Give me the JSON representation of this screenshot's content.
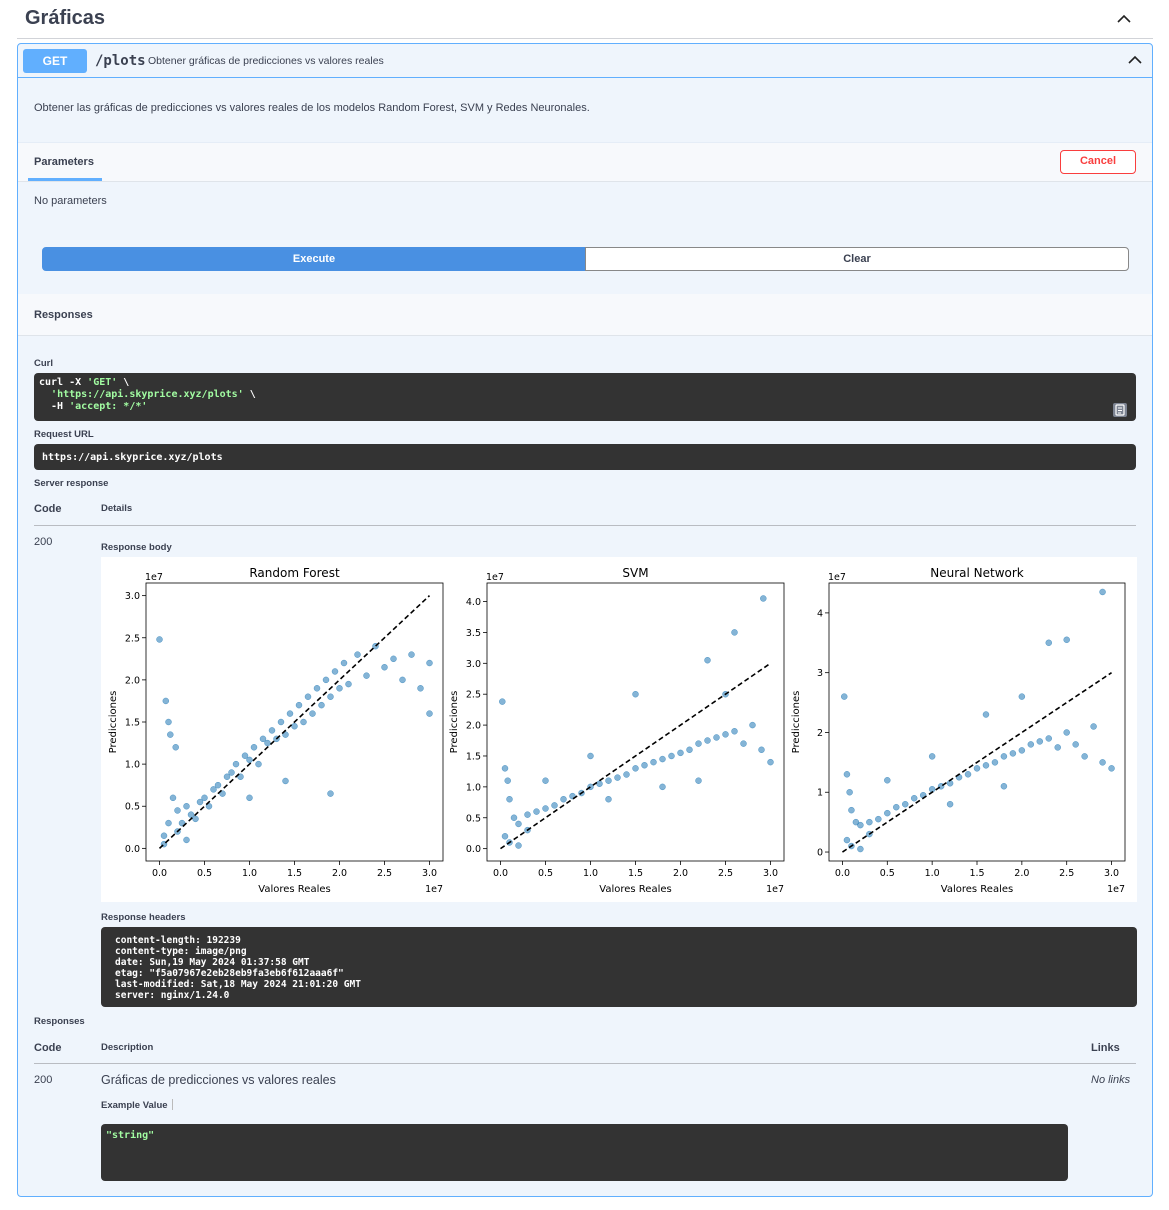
{
  "section": {
    "title": "Gráficas"
  },
  "operation": {
    "method": "GET",
    "path": "/plots",
    "summary": "Obtener gráficas de predicciones vs valores reales",
    "description": "Obtener las gráficas de predicciones vs valores reales de los modelos Random Forest, SVM y Redes Neuronales."
  },
  "parameters": {
    "tab_label": "Parameters",
    "cancel_label": "Cancel",
    "empty_text": "No parameters"
  },
  "actions": {
    "execute_label": "Execute",
    "clear_label": "Clear"
  },
  "responses_section": {
    "title": "Responses"
  },
  "curl": {
    "label": "Curl",
    "line1": "curl -X ",
    "line1_str": "'GET'",
    "line1_end": " \\",
    "line2_str": "'https://api.skyprice.xyz/plots'",
    "line2_end": " \\",
    "line3_pre": "  -H ",
    "line3_str": "'accept: */*'"
  },
  "request_url": {
    "label": "Request URL",
    "value": "https://api.skyprice.xyz/plots"
  },
  "server_response": {
    "label": "Server response",
    "col_code": "Code",
    "col_details": "Details",
    "code": "200",
    "body_label": "Response body",
    "headers_label": "Response headers",
    "headers": [
      "content-length: 192239",
      "content-type: image/png",
      "date: Sun,19 May 2024 01:37:58 GMT",
      "etag: \"f5a07967e2eb28eb9fa3eb6f612aaa6f\"",
      "last-modified: Sat,18 May 2024 21:01:20 GMT",
      "server: nginx/1.24.0"
    ]
  },
  "responses_table": {
    "label": "Responses",
    "col_code": "Code",
    "col_description": "Description",
    "col_links": "Links",
    "row_code": "200",
    "row_description": "Gráficas de predicciones vs valores reales",
    "row_links": "No links",
    "example_label": "Example Value",
    "example_value": "\"string\""
  },
  "colors": {
    "point": "#1f77b4",
    "accent": "#61affe",
    "execute": "#4990e2",
    "cancel": "#f93e3e"
  },
  "chart_data": [
    {
      "type": "scatter",
      "title": "Random Forest",
      "xlabel": "Valores Reales",
      "ylabel": "Predicciones",
      "x_exponent": "1e7",
      "y_exponent": "1e7",
      "xlim": [
        -0.15,
        3.15
      ],
      "ylim": [
        -0.15,
        3.15
      ],
      "xticks": [
        0.0,
        0.5,
        1.0,
        1.5,
        2.0,
        2.5,
        3.0
      ],
      "xtick_labels": [
        "0.0",
        "0.5",
        "1.0",
        "1.5",
        "2.0",
        "2.5",
        "3.0"
      ],
      "yticks": [
        0.0,
        0.5,
        1.0,
        1.5,
        2.0,
        2.5,
        3.0
      ],
      "ytick_labels": [
        "0.0",
        "0.5",
        "1.0",
        "1.5",
        "2.0",
        "2.5",
        "3.0"
      ],
      "reference_line": [
        [
          0.0,
          0.0
        ],
        [
          3.0,
          3.0
        ]
      ],
      "points": [
        [
          0.0,
          2.48
        ],
        [
          0.07,
          1.75
        ],
        [
          0.1,
          1.5
        ],
        [
          0.12,
          1.35
        ],
        [
          0.18,
          1.2
        ],
        [
          0.15,
          0.6
        ],
        [
          0.2,
          0.45
        ],
        [
          0.25,
          0.3
        ],
        [
          0.3,
          0.5
        ],
        [
          0.35,
          0.4
        ],
        [
          0.4,
          0.35
        ],
        [
          0.45,
          0.55
        ],
        [
          0.5,
          0.6
        ],
        [
          0.55,
          0.5
        ],
        [
          0.6,
          0.7
        ],
        [
          0.65,
          0.75
        ],
        [
          0.7,
          0.65
        ],
        [
          0.75,
          0.85
        ],
        [
          0.8,
          0.9
        ],
        [
          0.85,
          1.0
        ],
        [
          0.9,
          0.85
        ],
        [
          0.95,
          1.1
        ],
        [
          1.0,
          1.05
        ],
        [
          1.05,
          1.2
        ],
        [
          1.1,
          1.0
        ],
        [
          1.15,
          1.3
        ],
        [
          1.2,
          1.25
        ],
        [
          1.25,
          1.4
        ],
        [
          1.3,
          1.3
        ],
        [
          1.35,
          1.5
        ],
        [
          1.4,
          1.35
        ],
        [
          1.45,
          1.6
        ],
        [
          1.5,
          1.45
        ],
        [
          1.55,
          1.7
        ],
        [
          1.6,
          1.5
        ],
        [
          1.65,
          1.8
        ],
        [
          1.7,
          1.6
        ],
        [
          1.75,
          1.9
        ],
        [
          1.8,
          1.7
        ],
        [
          1.85,
          2.0
        ],
        [
          1.9,
          1.8
        ],
        [
          1.95,
          2.1
        ],
        [
          2.0,
          1.9
        ],
        [
          2.05,
          2.2
        ],
        [
          2.1,
          1.95
        ],
        [
          2.2,
          2.3
        ],
        [
          2.3,
          2.05
        ],
        [
          2.4,
          2.4
        ],
        [
          2.5,
          2.15
        ],
        [
          2.6,
          2.25
        ],
        [
          2.7,
          2.0
        ],
        [
          2.8,
          2.3
        ],
        [
          2.9,
          1.9
        ],
        [
          3.0,
          2.2
        ],
        [
          3.0,
          1.6
        ],
        [
          1.9,
          0.65
        ],
        [
          1.4,
          0.8
        ],
        [
          1.0,
          0.6
        ],
        [
          0.05,
          0.15
        ],
        [
          0.1,
          0.3
        ],
        [
          0.2,
          0.2
        ],
        [
          0.3,
          0.1
        ],
        [
          0.05,
          0.05
        ]
      ]
    },
    {
      "type": "scatter",
      "title": "SVM",
      "xlabel": "Valores Reales",
      "ylabel": "Predicciones",
      "x_exponent": "1e7",
      "y_exponent": "1e7",
      "xlim": [
        -0.15,
        3.15
      ],
      "ylim": [
        -0.2,
        4.3
      ],
      "xticks": [
        0.0,
        0.5,
        1.0,
        1.5,
        2.0,
        2.5,
        3.0
      ],
      "xtick_labels": [
        "0.0",
        "0.5",
        "1.0",
        "1.5",
        "2.0",
        "2.5",
        "3.0"
      ],
      "yticks": [
        0.0,
        0.5,
        1.0,
        1.5,
        2.0,
        2.5,
        3.0,
        3.5,
        4.0
      ],
      "ytick_labels": [
        "0.0",
        "0.5",
        "1.0",
        "1.5",
        "2.0",
        "2.5",
        "3.0",
        "3.5",
        "4.0"
      ],
      "reference_line": [
        [
          0.0,
          0.0
        ],
        [
          3.0,
          3.0
        ]
      ],
      "points": [
        [
          0.02,
          2.38
        ],
        [
          0.05,
          1.3
        ],
        [
          0.08,
          1.1
        ],
        [
          0.1,
          0.8
        ],
        [
          0.15,
          0.5
        ],
        [
          0.2,
          0.4
        ],
        [
          0.3,
          0.55
        ],
        [
          0.4,
          0.6
        ],
        [
          0.5,
          0.65
        ],
        [
          0.6,
          0.7
        ],
        [
          0.7,
          0.8
        ],
        [
          0.8,
          0.85
        ],
        [
          0.9,
          0.9
        ],
        [
          1.0,
          1.0
        ],
        [
          1.1,
          1.05
        ],
        [
          1.2,
          1.1
        ],
        [
          1.3,
          1.15
        ],
        [
          1.4,
          1.2
        ],
        [
          1.5,
          1.3
        ],
        [
          1.6,
          1.35
        ],
        [
          1.7,
          1.4
        ],
        [
          1.8,
          1.45
        ],
        [
          1.9,
          1.5
        ],
        [
          2.0,
          1.55
        ],
        [
          2.1,
          1.6
        ],
        [
          2.2,
          1.7
        ],
        [
          2.3,
          1.75
        ],
        [
          2.4,
          1.8
        ],
        [
          2.5,
          1.85
        ],
        [
          2.6,
          1.9
        ],
        [
          2.7,
          1.7
        ],
        [
          2.8,
          2.0
        ],
        [
          2.9,
          1.6
        ],
        [
          3.0,
          1.4
        ],
        [
          2.92,
          4.05
        ],
        [
          2.6,
          3.5
        ],
        [
          2.3,
          3.05
        ],
        [
          2.5,
          2.5
        ],
        [
          1.5,
          2.5
        ],
        [
          1.0,
          1.5
        ],
        [
          0.5,
          1.1
        ],
        [
          1.2,
          0.8
        ],
        [
          1.8,
          1.0
        ],
        [
          2.2,
          1.1
        ],
        [
          0.05,
          0.2
        ],
        [
          0.1,
          0.1
        ],
        [
          0.2,
          0.05
        ],
        [
          0.3,
          0.3
        ]
      ]
    },
    {
      "type": "scatter",
      "title": "Neural Network",
      "xlabel": "Valores Reales",
      "ylabel": "Predicciones",
      "x_exponent": "1e7",
      "y_exponent": "1e7",
      "xlim": [
        -0.15,
        3.15
      ],
      "ylim": [
        -0.15,
        4.5
      ],
      "xticks": [
        0.0,
        0.5,
        1.0,
        1.5,
        2.0,
        2.5,
        3.0
      ],
      "xtick_labels": [
        "0.0",
        "0.5",
        "1.0",
        "1.5",
        "2.0",
        "2.5",
        "3.0"
      ],
      "yticks": [
        0,
        1,
        2,
        3,
        4
      ],
      "ytick_labels": [
        "0",
        "1",
        "2",
        "3",
        "4"
      ],
      "reference_line": [
        [
          0.0,
          0.0
        ],
        [
          3.0,
          3.0
        ]
      ],
      "points": [
        [
          0.02,
          2.6
        ],
        [
          0.05,
          1.3
        ],
        [
          0.08,
          1.0
        ],
        [
          0.1,
          0.7
        ],
        [
          0.15,
          0.5
        ],
        [
          0.2,
          0.45
        ],
        [
          0.3,
          0.5
        ],
        [
          0.4,
          0.55
        ],
        [
          0.5,
          0.65
        ],
        [
          0.6,
          0.75
        ],
        [
          0.7,
          0.8
        ],
        [
          0.8,
          0.9
        ],
        [
          0.9,
          0.95
        ],
        [
          1.0,
          1.05
        ],
        [
          1.1,
          1.1
        ],
        [
          1.2,
          1.15
        ],
        [
          1.3,
          1.25
        ],
        [
          1.4,
          1.3
        ],
        [
          1.5,
          1.4
        ],
        [
          1.6,
          1.45
        ],
        [
          1.7,
          1.5
        ],
        [
          1.8,
          1.6
        ],
        [
          1.9,
          1.65
        ],
        [
          2.0,
          1.7
        ],
        [
          2.1,
          1.8
        ],
        [
          2.2,
          1.85
        ],
        [
          2.3,
          1.9
        ],
        [
          2.4,
          1.75
        ],
        [
          2.5,
          2.0
        ],
        [
          2.6,
          1.8
        ],
        [
          2.7,
          1.6
        ],
        [
          2.8,
          2.1
        ],
        [
          2.9,
          1.5
        ],
        [
          3.0,
          1.4
        ],
        [
          2.9,
          4.35
        ],
        [
          2.5,
          3.55
        ],
        [
          2.3,
          3.5
        ],
        [
          2.0,
          2.6
        ],
        [
          1.6,
          2.3
        ],
        [
          1.0,
          1.6
        ],
        [
          0.5,
          1.2
        ],
        [
          1.2,
          0.8
        ],
        [
          1.8,
          1.1
        ],
        [
          0.05,
          0.2
        ],
        [
          0.1,
          0.1
        ],
        [
          0.2,
          0.05
        ],
        [
          0.3,
          0.3
        ]
      ]
    }
  ]
}
